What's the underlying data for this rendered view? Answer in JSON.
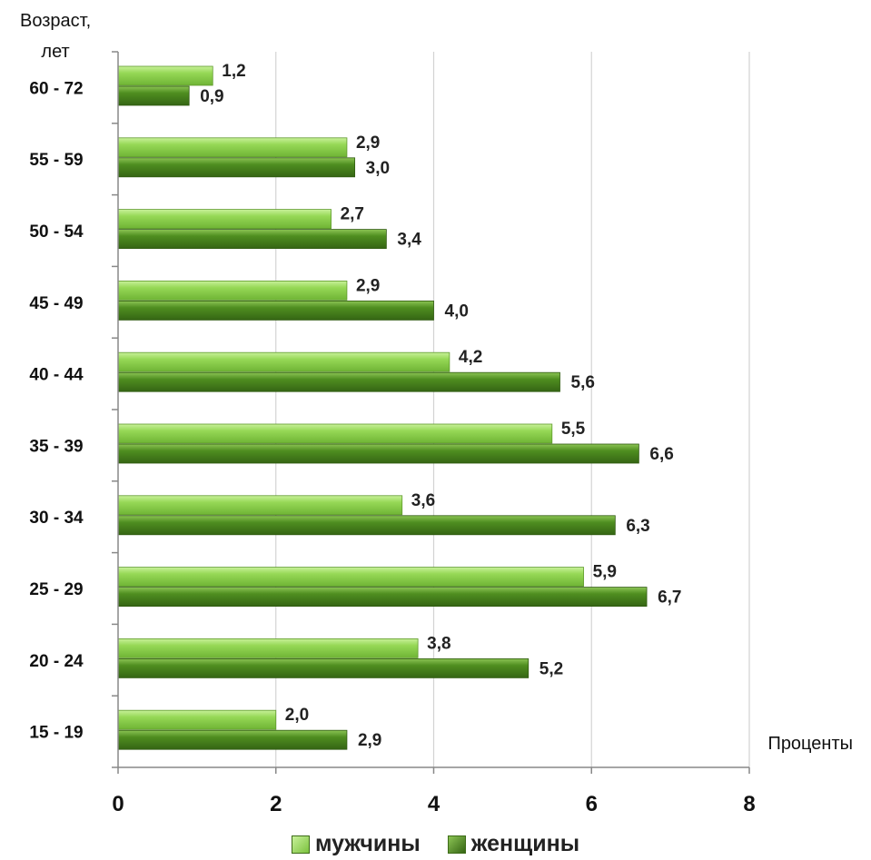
{
  "chart_data": {
    "type": "bar",
    "orientation": "horizontal",
    "ylabel_line1": "Возраст,",
    "ylabel_line2": "лет",
    "xlabel": "Проценты",
    "categories": [
      "60 - 72",
      "55 - 59",
      "50 - 54",
      "45 - 49",
      "40 - 44",
      "35 - 39",
      "30 - 34",
      "25 - 29",
      "20 - 24",
      "15 - 19"
    ],
    "series": [
      {
        "name": "мужчины",
        "values": [
          1.2,
          2.9,
          2.7,
          2.9,
          4.2,
          5.5,
          3.6,
          5.9,
          3.8,
          2.0
        ],
        "color": "#8fd14f"
      },
      {
        "name": "женщины",
        "values": [
          0.9,
          3.0,
          3.4,
          4.0,
          5.6,
          6.6,
          6.3,
          6.7,
          5.2,
          2.9
        ],
        "color": "#4e8a1e"
      }
    ],
    "value_labels": [
      [
        "1,2",
        "2,9",
        "2,7",
        "2,9",
        "4,2",
        "5,5",
        "3,6",
        "5,9",
        "3,8",
        "2,0"
      ],
      [
        "0,9",
        "3,0",
        "3,4",
        "4,0",
        "5,6",
        "6,6",
        "6,3",
        "6,7",
        "5,2",
        "2,9"
      ]
    ],
    "xlim": [
      0,
      8
    ],
    "xticks": [
      0,
      2,
      4,
      6,
      8
    ],
    "xtick_labels": [
      "0",
      "2",
      "4",
      "6",
      "8"
    ],
    "grid": "vertical",
    "legend_position": "bottom"
  }
}
